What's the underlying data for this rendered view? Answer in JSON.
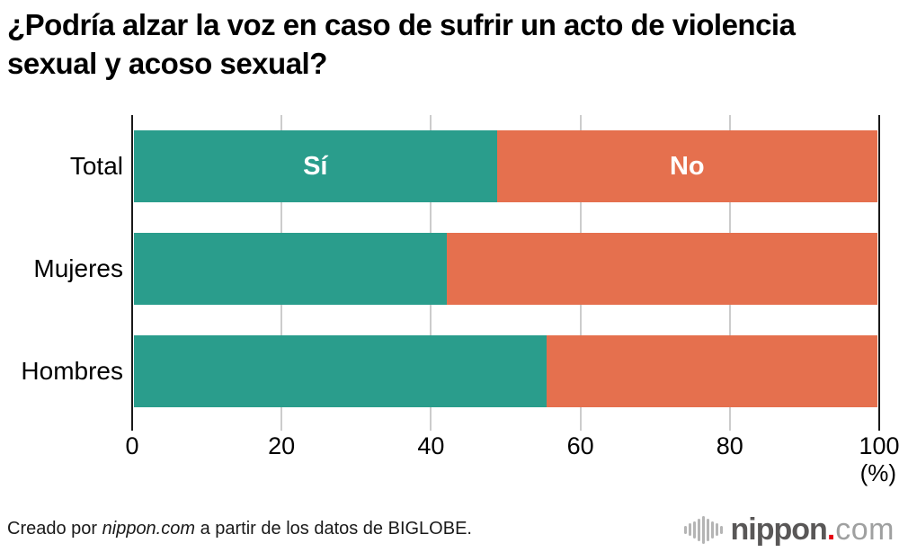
{
  "chart_data": {
    "type": "bar",
    "orientation": "horizontal",
    "stacked": true,
    "title": "¿Podría alzar la voz en caso de sufrir un acto de violencia sexual y acoso sexual?",
    "categories": [
      "Total",
      "Mujeres",
      "Hombres"
    ],
    "series": [
      {
        "name": "Sí",
        "color": "#2a9d8c",
        "values": [
          48.8,
          42.1,
          55.5
        ]
      },
      {
        "name": "No",
        "color": "#e5704e",
        "values": [
          51.2,
          57.9,
          44.5
        ]
      }
    ],
    "xlim": [
      0,
      100
    ],
    "xticks": [
      0,
      20,
      40,
      60,
      80,
      100
    ],
    "xlabel": "(%)",
    "grid": true,
    "legend_position": "labels-inside-first-bar",
    "colors": {
      "grid": "#cccccc",
      "axis": "#1a1a1a",
      "background": "#ffffff"
    }
  },
  "footer": {
    "prefix": "Creado por ",
    "source": "nippon.com",
    "suffix": " a partir de los datos de BIGLOBE."
  },
  "logo": {
    "brand": "nippon",
    "dot": ".",
    "tld": "com",
    "icon": "soundwave-bars-icon",
    "colors": {
      "brand": "#595757",
      "tld": "#9fa0a0",
      "dot": "#e60012",
      "bars": "#b5b5b5"
    }
  }
}
